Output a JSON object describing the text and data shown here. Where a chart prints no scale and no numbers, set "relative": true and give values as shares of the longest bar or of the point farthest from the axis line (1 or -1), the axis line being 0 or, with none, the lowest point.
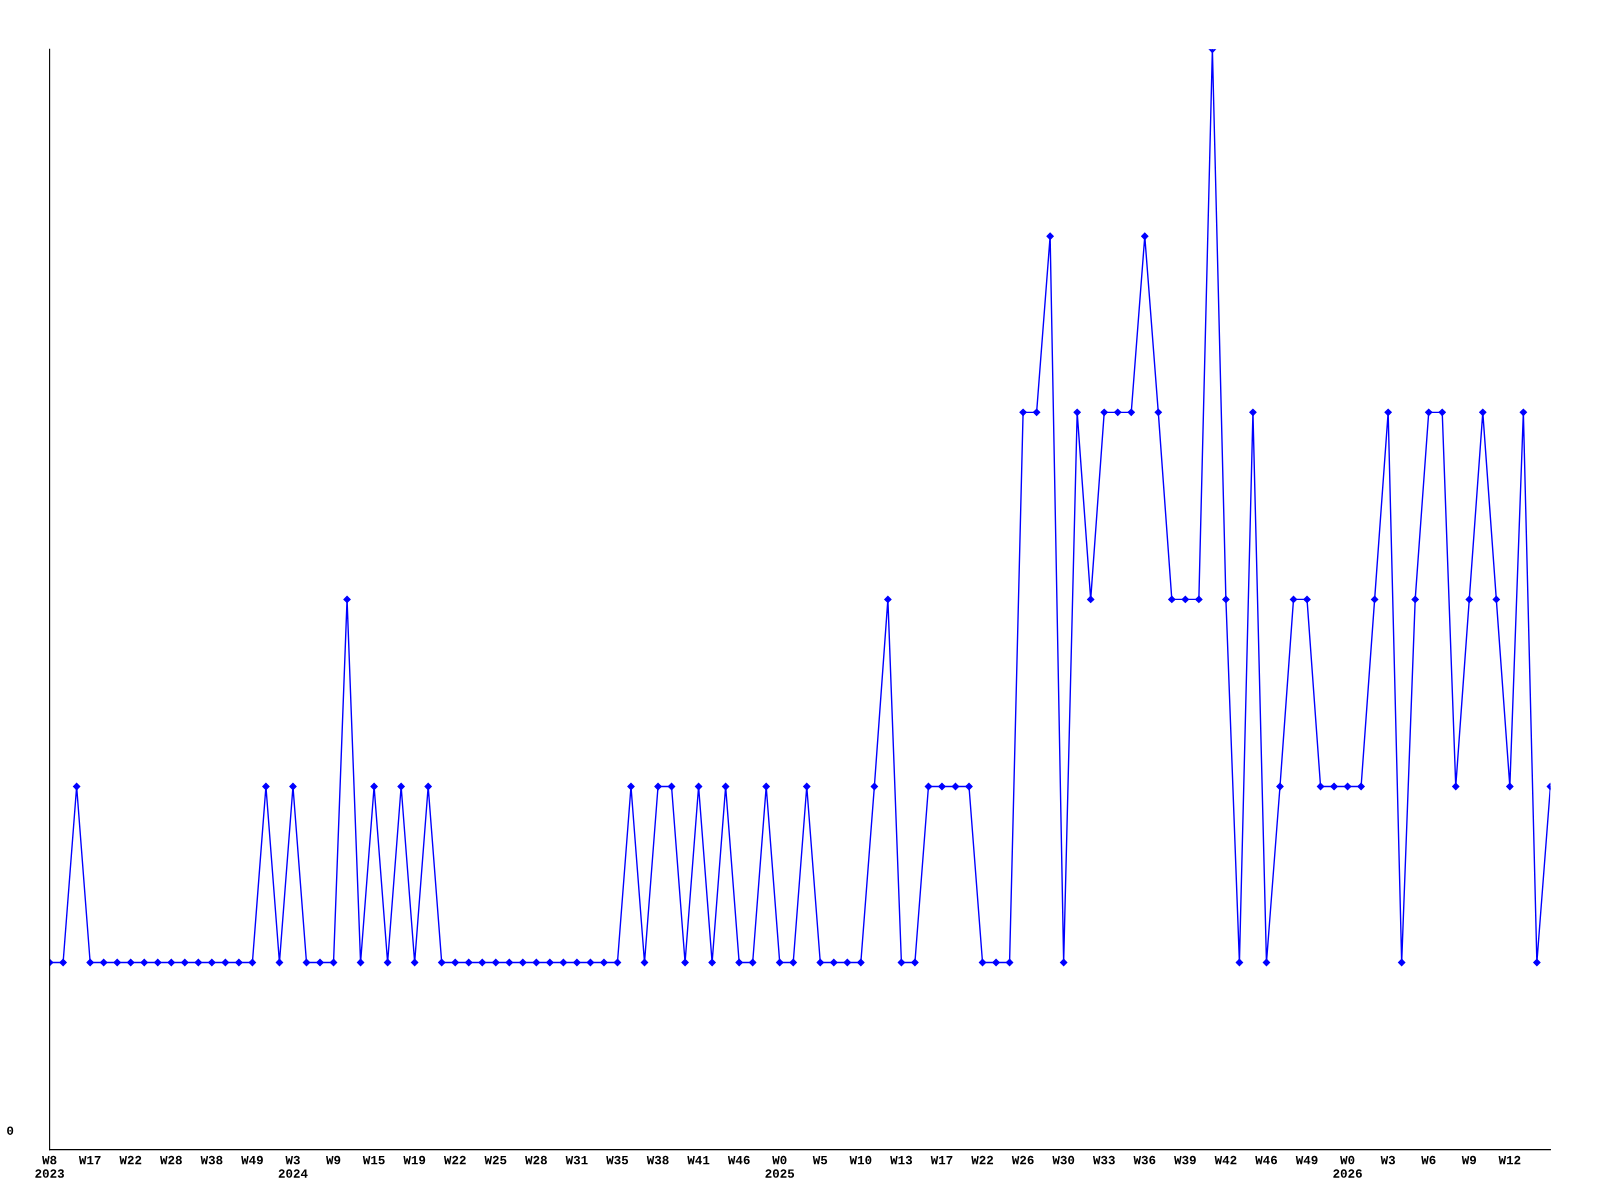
{
  "chart_data": {
    "type": "line",
    "relative": true,
    "annotations": [
      "0"
    ],
    "color": "#0000ff",
    "marker": "diamond",
    "line_style": "solid",
    "grid": false,
    "legend": false,
    "categories": [
      "W8\n2023",
      null,
      null,
      "W17",
      null,
      null,
      "W22",
      null,
      null,
      "W28",
      null,
      null,
      "W38",
      null,
      null,
      "W49",
      null,
      null,
      "W3\n2024",
      null,
      null,
      "W9",
      null,
      null,
      "W15",
      null,
      null,
      "W19",
      null,
      null,
      "W22",
      null,
      null,
      "W25",
      null,
      null,
      "W28",
      null,
      null,
      "W31",
      null,
      null,
      "W35",
      null,
      null,
      "W38",
      null,
      null,
      "W41",
      null,
      null,
      "W46",
      null,
      null,
      "W0\n2025",
      null,
      null,
      "W5",
      null,
      null,
      "W10",
      null,
      null,
      "W13",
      null,
      null,
      "W17",
      null,
      null,
      "W22",
      null,
      null,
      "W26",
      null,
      null,
      "W30",
      null,
      null,
      "W33",
      null,
      null,
      "W36",
      null,
      null,
      "W39",
      null,
      null,
      "W42",
      null,
      null,
      "W46",
      null,
      null,
      "W49",
      null,
      null,
      "W0\n2026",
      null,
      null,
      "W3",
      null,
      null,
      "W6",
      null,
      null,
      "W9",
      null,
      null,
      "W12",
      null,
      null,
      null
    ],
    "values": [
      0.17,
      0.17,
      0.33,
      0.17,
      0.17,
      0.17,
      0.17,
      0.17,
      0.17,
      0.17,
      0.17,
      0.17,
      0.17,
      0.17,
      0.17,
      0.17,
      0.33,
      0.17,
      0.33,
      0.17,
      0.17,
      0.17,
      0.5,
      0.17,
      0.33,
      0.17,
      0.33,
      0.17,
      0.33,
      0.17,
      0.17,
      0.17,
      0.17,
      0.17,
      0.17,
      0.17,
      0.17,
      0.17,
      0.17,
      0.17,
      0.17,
      0.17,
      0.17,
      0.33,
      0.17,
      0.33,
      0.33,
      0.17,
      0.33,
      0.17,
      0.33,
      0.17,
      0.17,
      0.33,
      0.17,
      0.17,
      0.33,
      0.17,
      0.17,
      0.17,
      0.17,
      0.33,
      0.5,
      0.17,
      0.17,
      0.33,
      0.33,
      0.33,
      0.33,
      0.17,
      0.17,
      0.17,
      0.67,
      0.67,
      0.83,
      0.17,
      0.67,
      0.5,
      0.67,
      0.67,
      0.67,
      0.83,
      0.67,
      0.5,
      0.5,
      0.5,
      1,
      0.5,
      0.17,
      0.67,
      0.17,
      0.33,
      0.5,
      0.5,
      0.33,
      0.33,
      0.33,
      0.33,
      0.5,
      0.67,
      0.17,
      0.5,
      0.67,
      0.67,
      0.33,
      0.5,
      0.67,
      0.5,
      0.33,
      0.67,
      0.17,
      0.33
    ]
  }
}
